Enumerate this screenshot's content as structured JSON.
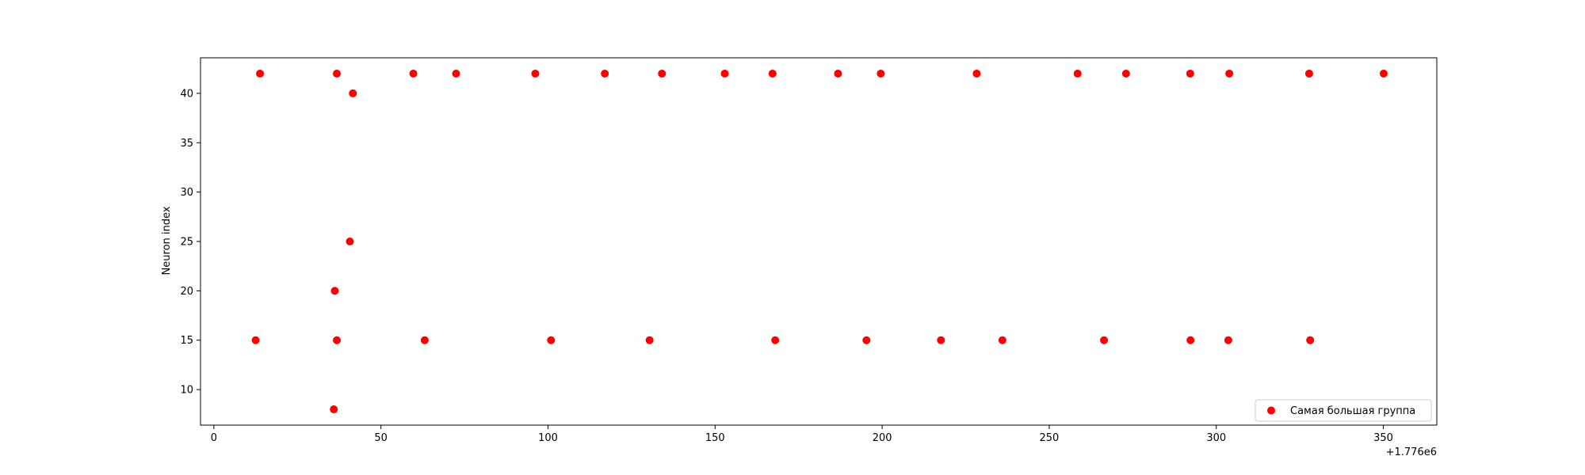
{
  "chart_data": {
    "type": "scatter",
    "title": "",
    "xlabel": "",
    "ylabel": "Neuron index",
    "x_offset_label": "+1.776e6",
    "xlim": [
      1775996,
      1776366
    ],
    "ylim": [
      6.4,
      43.6
    ],
    "xticks": [
      {
        "value": 1776000,
        "label": "0"
      },
      {
        "value": 1776050,
        "label": "50"
      },
      {
        "value": 1776100,
        "label": "100"
      },
      {
        "value": 1776150,
        "label": "150"
      },
      {
        "value": 1776200,
        "label": "200"
      },
      {
        "value": 1776250,
        "label": "250"
      },
      {
        "value": 1776300,
        "label": "300"
      },
      {
        "value": 1776350,
        "label": "350"
      }
    ],
    "yticks": [
      {
        "value": 10,
        "label": "10"
      },
      {
        "value": 15,
        "label": "15"
      },
      {
        "value": 20,
        "label": "20"
      },
      {
        "value": 25,
        "label": "25"
      },
      {
        "value": 30,
        "label": "30"
      },
      {
        "value": 35,
        "label": "35"
      },
      {
        "value": 40,
        "label": "40"
      }
    ],
    "grid": false,
    "legend_position": "lower-right",
    "series": [
      {
        "name": "Самая большая группа",
        "color": "#ff0000",
        "points": [
          {
            "x": 1776013.8,
            "y": 42
          },
          {
            "x": 1776036.8,
            "y": 42
          },
          {
            "x": 1776059.7,
            "y": 42
          },
          {
            "x": 1776072.5,
            "y": 42
          },
          {
            "x": 1776096.2,
            "y": 42
          },
          {
            "x": 1776117.0,
            "y": 42
          },
          {
            "x": 1776134.1,
            "y": 42
          },
          {
            "x": 1776152.9,
            "y": 42
          },
          {
            "x": 1776167.2,
            "y": 42
          },
          {
            "x": 1776186.8,
            "y": 42
          },
          {
            "x": 1776199.6,
            "y": 42
          },
          {
            "x": 1776228.3,
            "y": 42
          },
          {
            "x": 1776258.5,
            "y": 42
          },
          {
            "x": 1776273.0,
            "y": 42
          },
          {
            "x": 1776292.2,
            "y": 42
          },
          {
            "x": 1776303.9,
            "y": 42
          },
          {
            "x": 1776327.8,
            "y": 42
          },
          {
            "x": 1776350.1,
            "y": 42
          },
          {
            "x": 1776041.6,
            "y": 40
          },
          {
            "x": 1776040.7,
            "y": 25
          },
          {
            "x": 1776036.2,
            "y": 20
          },
          {
            "x": 1776012.5,
            "y": 15
          },
          {
            "x": 1776036.8,
            "y": 15
          },
          {
            "x": 1776063.1,
            "y": 15
          },
          {
            "x": 1776100.9,
            "y": 15
          },
          {
            "x": 1776130.4,
            "y": 15
          },
          {
            "x": 1776168.0,
            "y": 15
          },
          {
            "x": 1776195.3,
            "y": 15
          },
          {
            "x": 1776217.6,
            "y": 15
          },
          {
            "x": 1776236.0,
            "y": 15
          },
          {
            "x": 1776266.4,
            "y": 15
          },
          {
            "x": 1776292.3,
            "y": 15
          },
          {
            "x": 1776303.6,
            "y": 15
          },
          {
            "x": 1776328.1,
            "y": 15
          },
          {
            "x": 1776035.9,
            "y": 8
          }
        ]
      }
    ]
  }
}
